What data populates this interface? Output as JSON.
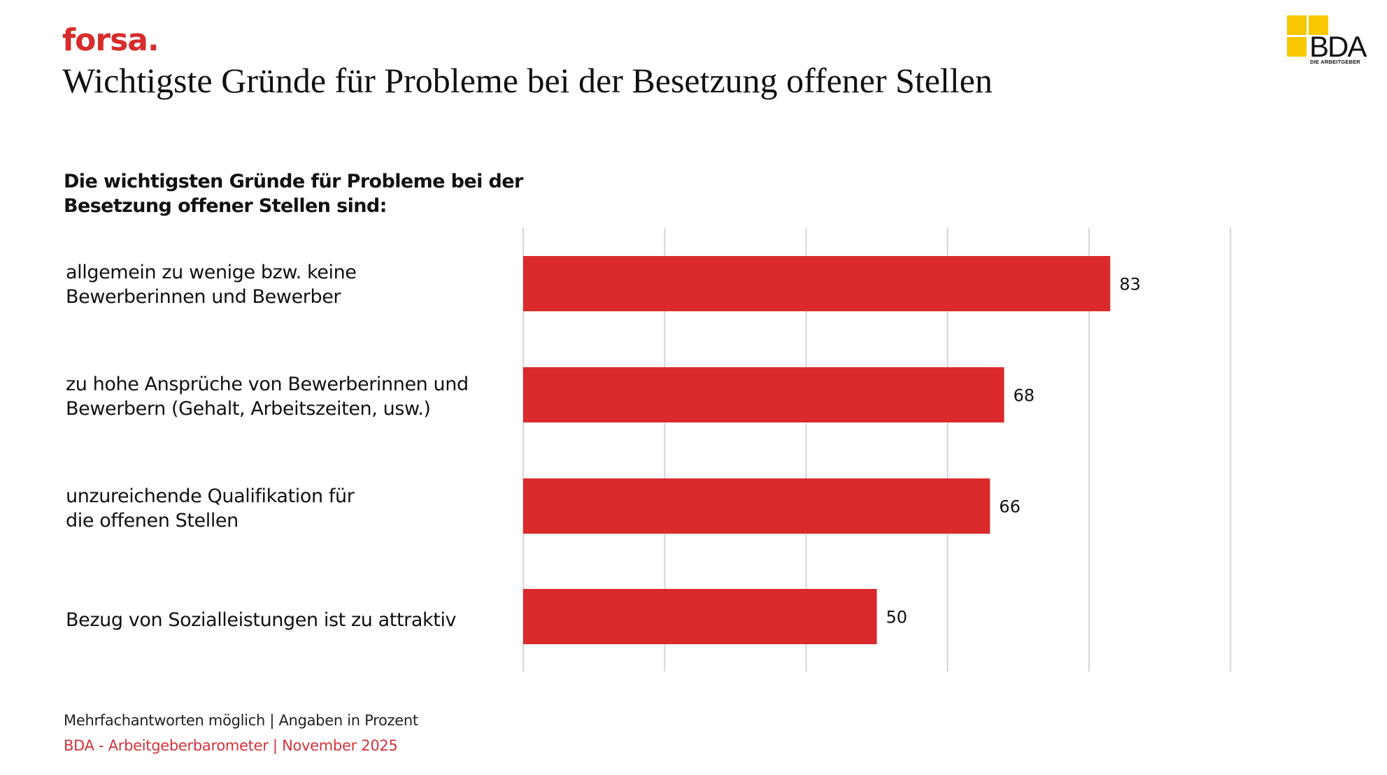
{
  "header": {
    "brand": "forsa.",
    "title": "Wichtigste Gründe für Probleme bei der Besetzung offener Stellen",
    "logo_text": "BDA",
    "logo_subtext": "DIE ARBEITGEBER"
  },
  "colors": {
    "bar": "#da2a2b",
    "brand_red": "#d62c2b",
    "footer_red": "#d0343a",
    "logo_yellow": "#f7c800",
    "gridline": "#d6d6d6"
  },
  "chart_data": {
    "type": "bar",
    "orientation": "horizontal",
    "title": "Die wichtigsten Gründe für Probleme bei der Besetzung offener Stellen sind:",
    "title_lines": [
      "Die wichtigsten Gründe für Probleme bei der",
      "Besetzung offener Stellen sind:"
    ],
    "categories": [
      "allgemein zu wenige bzw. keine Bewerberinnen und Bewerber",
      "zu hohe Ansprüche von Bewerberinnen und Bewerbern (Gehalt, Arbeitszeiten, usw.)",
      "unzureichende Qualifikation für die offenen Stellen",
      "Bezug von Sozialleistungen ist zu attraktiv"
    ],
    "category_lines": [
      [
        "allgemein zu wenige bzw. keine",
        "Bewerberinnen und Bewerber"
      ],
      [
        "zu hohe Ansprüche von Bewerberinnen und",
        "Bewerbern (Gehalt, Arbeitszeiten, usw.)"
      ],
      [
        "unzureichende Qualifikation für",
        "die offenen Stellen"
      ],
      [
        "Bezug von Sozialleistungen ist zu attraktiv"
      ]
    ],
    "values": [
      83,
      68,
      66,
      50
    ],
    "data_labels": [
      "83",
      "68",
      "66",
      "50"
    ],
    "xlabel": "",
    "ylabel": "",
    "xlim": [
      0,
      100
    ],
    "gridlines_at": [
      0,
      20,
      40,
      60,
      80,
      100
    ],
    "grid": true,
    "tick_labels_shown": false,
    "legend": "none"
  },
  "footer": {
    "note": "Mehrfachantworten möglich | Angaben in Prozent",
    "source": "BDA - Arbeitgeberbarometer | November 2025"
  }
}
